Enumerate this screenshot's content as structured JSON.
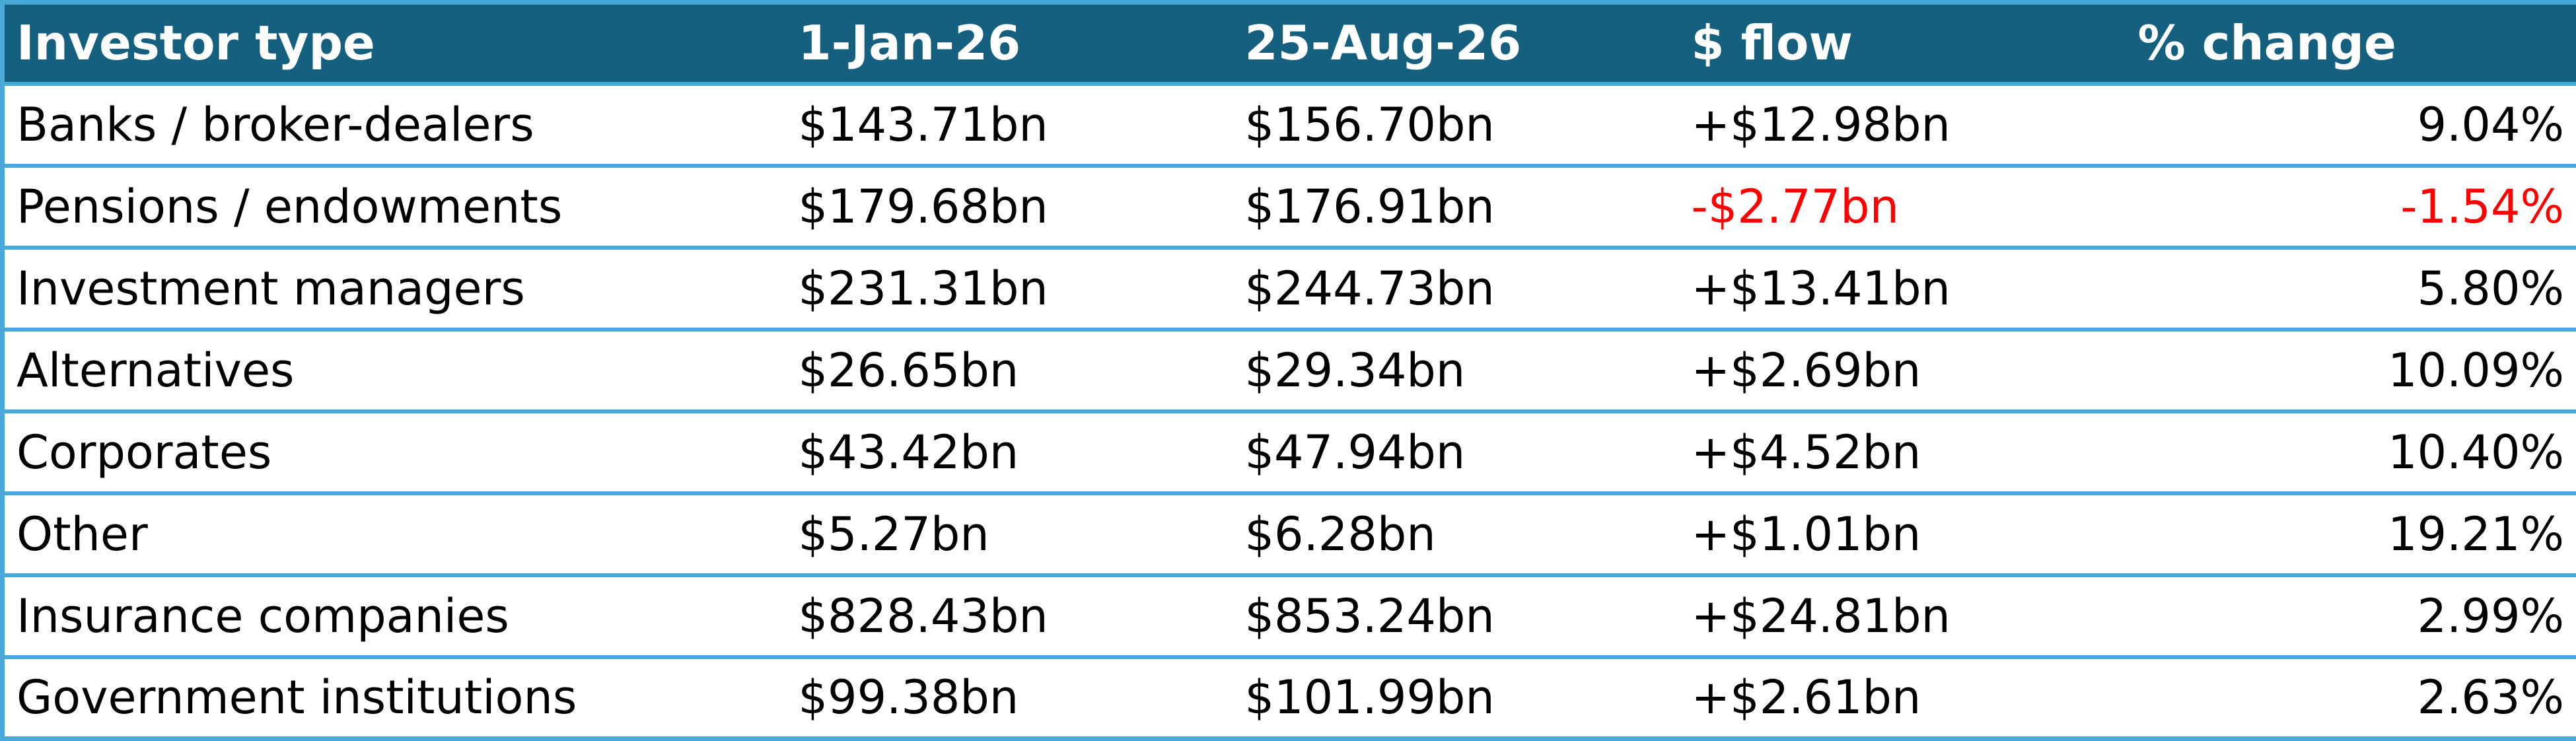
{
  "colors": {
    "header_bg": "#16607f",
    "header_text": "#ffffff",
    "border": "#4aa8d8",
    "negative": "#ff0000",
    "text": "#000000"
  },
  "chart_data": {
    "type": "table",
    "columns": [
      "Investor type",
      "1-Jan-26",
      "25-Aug-26",
      "$ flow",
      "% change"
    ],
    "rows": [
      [
        "Banks / broker-dealers",
        "$143.71bn",
        "$156.70bn",
        "+$12.98bn",
        "9.04%"
      ],
      [
        "Pensions / endowments",
        "$179.68bn",
        "$176.91bn",
        "-$2.77bn",
        "-1.54%"
      ],
      [
        "Investment managers",
        "$231.31bn",
        "$244.73bn",
        "+$13.41bn",
        "5.80%"
      ],
      [
        "Alternatives",
        "$26.65bn",
        "$29.34bn",
        "+$2.69bn",
        "10.09%"
      ],
      [
        "Corporates",
        "$43.42bn",
        "$47.94bn",
        "+$4.52bn",
        "10.40%"
      ],
      [
        "Other",
        "$5.27bn",
        "$6.28bn",
        "+$1.01bn",
        "19.21%"
      ],
      [
        "Insurance companies",
        "$828.43bn",
        "$853.24bn",
        "+$24.81bn",
        "2.99%"
      ],
      [
        "Government institutions",
        "$99.38bn",
        "$101.99bn",
        "+$2.61bn",
        "2.63%"
      ]
    ]
  }
}
